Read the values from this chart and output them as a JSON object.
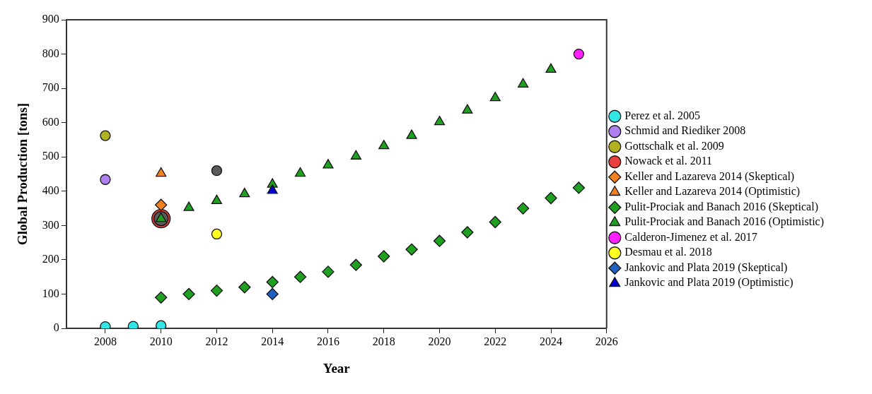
{
  "chart_data": {
    "type": "scatter",
    "xlabel": "Year",
    "ylabel": "Global Production [tons]",
    "xlim": [
      2006.6,
      2026
    ],
    "xticks": [
      2008,
      2010,
      2012,
      2014,
      2016,
      2018,
      2020,
      2022,
      2024,
      2026
    ],
    "ylim": [
      0,
      900
    ],
    "yticks": [
      0,
      100,
      200,
      300,
      400,
      500,
      600,
      700,
      800,
      900
    ],
    "grid": false,
    "legend": "right",
    "series": [
      {
        "name": "Perez et al. 2005",
        "color": "#33e6e6",
        "marker": "circle",
        "x": [
          2008,
          2009,
          2010
        ],
        "values": [
          5,
          6,
          8
        ]
      },
      {
        "name": "Schmid and Riediker 2008",
        "color": "#b080f0",
        "marker": "circle",
        "x": [
          2008
        ],
        "values": [
          434
        ]
      },
      {
        "name": "Gottschalk et al. 2009",
        "color": "#b0b020",
        "marker": "circle",
        "x": [
          2008
        ],
        "values": [
          562
        ]
      },
      {
        "name": "Nowack et al. 2011",
        "color": "#e84040",
        "marker": "circle",
        "x": [
          2010
        ],
        "values": [
          320
        ]
      },
      {
        "name": "Keller and Lazareva 2014 (Skeptical)",
        "color": "#f08020",
        "marker": "diamond",
        "x": [
          2010
        ],
        "values": [
          360
        ]
      },
      {
        "name": "Keller and Lazareva 2014 (Optimistic)",
        "color": "#f08020",
        "marker": "triangle",
        "x": [
          2010
        ],
        "values": [
          452
        ]
      },
      {
        "color": "#5a5a5a",
        "marker": "circle",
        "x": [
          2010,
          2012
        ],
        "values": [
          320,
          460
        ]
      },
      {
        "name": "Pulit-Prociak and Banach 2016 (Skeptical)",
        "color": "#20a020",
        "marker": "diamond",
        "x": [
          2010,
          2011,
          2012,
          2013,
          2014,
          2015,
          2016,
          2017,
          2018,
          2019,
          2020,
          2021,
          2022,
          2023,
          2024,
          2025
        ],
        "values": [
          90,
          100,
          110,
          120,
          135,
          150,
          165,
          185,
          210,
          230,
          255,
          280,
          310,
          350,
          380,
          410
        ]
      },
      {
        "name": "Pulit-Prociak and Banach 2016 (Optimistic)",
        "color": "#20a020",
        "marker": "triangle",
        "x": [
          2010,
          2011,
          2012,
          2013,
          2014,
          2015,
          2016,
          2017,
          2018,
          2019,
          2020,
          2021,
          2022,
          2023,
          2024
        ],
        "values": [
          320,
          352,
          372,
          392,
          420,
          452,
          476,
          502,
          532,
          562,
          602,
          636,
          672,
          712,
          755
        ]
      },
      {
        "name": "Calderon-Jimenez et al. 2017",
        "color": "#ff20ff",
        "marker": "circle",
        "x": [
          2025
        ],
        "values": [
          800
        ]
      },
      {
        "name": "Desmau et al. 2018",
        "color": "#ffff20",
        "marker": "circle",
        "x": [
          2012
        ],
        "values": [
          275
        ]
      },
      {
        "name": "Jankovic and Plata 2019 (Skeptical)",
        "color": "#2060c0",
        "marker": "diamond",
        "x": [
          2014
        ],
        "values": [
          100
        ]
      },
      {
        "name": "Jankovic and Plata 2019 (Optimistic)",
        "color": "#0000d0",
        "marker": "triangle",
        "x": [
          2014
        ],
        "values": [
          402
        ]
      }
    ]
  }
}
